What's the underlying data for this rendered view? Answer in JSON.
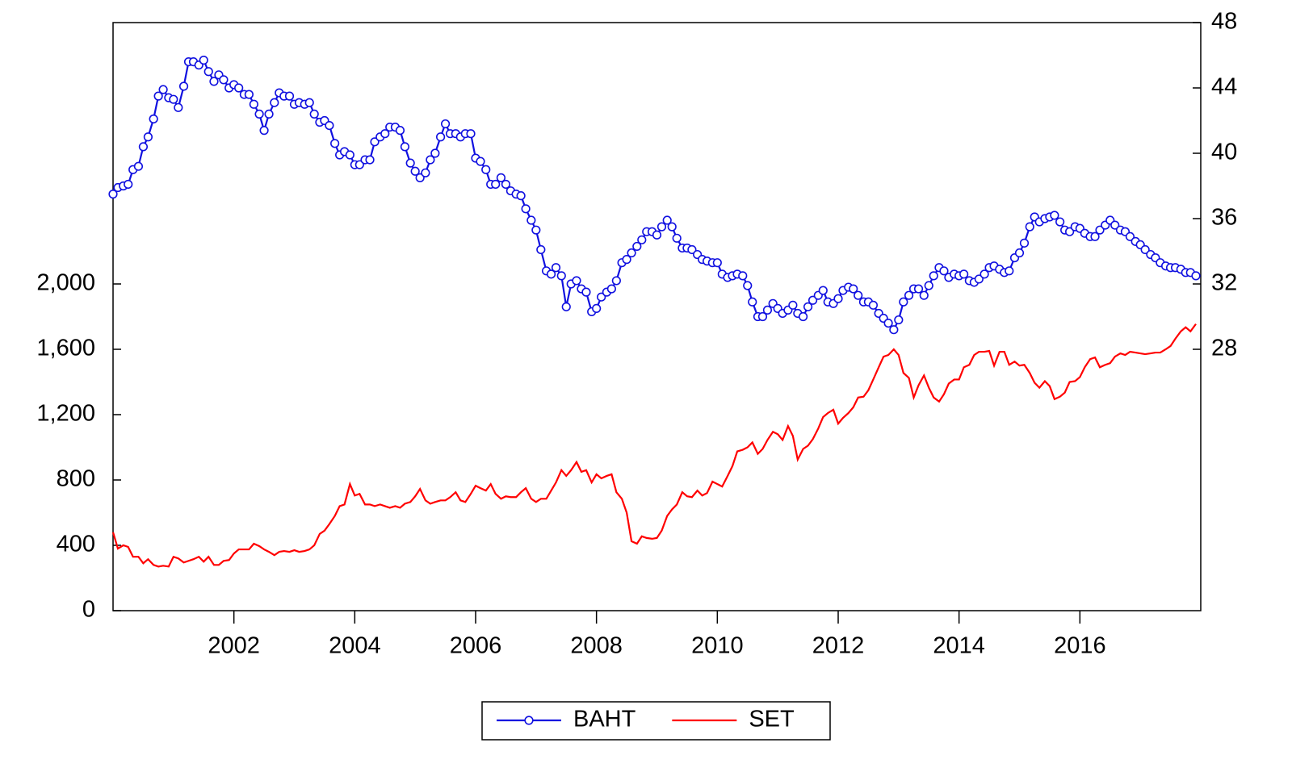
{
  "chart_data": {
    "type": "line",
    "x": [
      2000,
      2000.08,
      2000.17,
      2000.25,
      2000.33,
      2000.42,
      2000.5,
      2000.58,
      2000.67,
      2000.75,
      2000.83,
      2000.92,
      2001,
      2001.08,
      2001.17,
      2001.25,
      2001.33,
      2001.42,
      2001.5,
      2001.58,
      2001.67,
      2001.75,
      2001.83,
      2001.92,
      2002,
      2002.08,
      2002.17,
      2002.25,
      2002.33,
      2002.42,
      2002.5,
      2002.58,
      2002.67,
      2002.75,
      2002.83,
      2002.92,
      2003,
      2003.08,
      2003.17,
      2003.25,
      2003.33,
      2003.42,
      2003.5,
      2003.58,
      2003.67,
      2003.75,
      2003.83,
      2003.92,
      2004,
      2004.08,
      2004.17,
      2004.25,
      2004.33,
      2004.42,
      2004.5,
      2004.58,
      2004.67,
      2004.75,
      2004.83,
      2004.92,
      2005,
      2005.08,
      2005.17,
      2005.25,
      2005.33,
      2005.42,
      2005.5,
      2005.58,
      2005.67,
      2005.75,
      2005.83,
      2005.92,
      2006,
      2006.08,
      2006.17,
      2006.25,
      2006.33,
      2006.42,
      2006.5,
      2006.58,
      2006.67,
      2006.75,
      2006.83,
      2006.92,
      2007,
      2007.08,
      2007.17,
      2007.25,
      2007.33,
      2007.42,
      2007.5,
      2007.58,
      2007.67,
      2007.75,
      2007.83,
      2007.92,
      2008,
      2008.08,
      2008.17,
      2008.25,
      2008.33,
      2008.42,
      2008.5,
      2008.58,
      2008.67,
      2008.75,
      2008.83,
      2008.92,
      2009,
      2009.08,
      2009.17,
      2009.25,
      2009.33,
      2009.42,
      2009.5,
      2009.58,
      2009.67,
      2009.75,
      2009.83,
      2009.92,
      2010,
      2010.08,
      2010.17,
      2010.25,
      2010.33,
      2010.42,
      2010.5,
      2010.58,
      2010.67,
      2010.75,
      2010.83,
      2010.92,
      2011,
      2011.08,
      2011.17,
      2011.25,
      2011.33,
      2011.42,
      2011.5,
      2011.58,
      2011.67,
      2011.75,
      2011.83,
      2011.92,
      2012,
      2012.08,
      2012.17,
      2012.25,
      2012.33,
      2012.42,
      2012.5,
      2012.58,
      2012.67,
      2012.75,
      2012.83,
      2012.92,
      2013,
      2013.08,
      2013.17,
      2013.25,
      2013.33,
      2013.42,
      2013.5,
      2013.58,
      2013.67,
      2013.75,
      2013.83,
      2013.92,
      2014,
      2014.08,
      2014.17,
      2014.25,
      2014.33,
      2014.42,
      2014.5,
      2014.58,
      2014.67,
      2014.75,
      2014.83,
      2014.92,
      2015,
      2015.08,
      2015.17,
      2015.25,
      2015.33,
      2015.42,
      2015.5,
      2015.58,
      2015.67,
      2015.75,
      2015.83,
      2015.92,
      2016,
      2016.08,
      2016.17,
      2016.25,
      2016.33,
      2016.42,
      2016.5,
      2016.58,
      2016.67,
      2016.75,
      2016.83,
      2016.92,
      2017,
      2017.08,
      2017.17,
      2017.25,
      2017.33,
      2017.42,
      2017.5,
      2017.58,
      2017.67,
      2017.75,
      2017.83,
      2017.92
    ],
    "xlim": [
      2000,
      2018
    ],
    "xticks": [
      2002,
      2004,
      2006,
      2008,
      2010,
      2012,
      2014,
      2016
    ],
    "ylim": [
      0,
      3600
    ],
    "yticks": [
      0,
      400,
      800,
      {
        "value": 1200,
        "label": "1,200"
      },
      {
        "value": 1600,
        "label": "1,600"
      },
      {
        "value": 2000,
        "label": "2,000"
      }
    ],
    "y2lim": [
      12,
      48
    ],
    "y2ticks": [
      28,
      32,
      36,
      40,
      44,
      48
    ],
    "series": [
      {
        "name": "BAHT",
        "color": "#1010e0",
        "axis": "y2",
        "marker": "circle",
        "values": [
          37.5,
          37.9,
          38.0,
          38.1,
          39.0,
          39.2,
          40.4,
          41.0,
          42.1,
          43.5,
          43.9,
          43.4,
          43.3,
          42.8,
          44.1,
          45.6,
          45.6,
          45.4,
          45.7,
          45.0,
          44.4,
          44.8,
          44.5,
          44.0,
          44.2,
          44.0,
          43.6,
          43.6,
          43.0,
          42.4,
          41.4,
          42.4,
          43.1,
          43.7,
          43.5,
          43.5,
          43.0,
          43.1,
          43.0,
          43.1,
          42.4,
          41.9,
          42.0,
          41.7,
          40.6,
          39.9,
          40.1,
          39.9,
          39.3,
          39.3,
          39.6,
          39.6,
          40.7,
          41.0,
          41.2,
          41.6,
          41.6,
          41.4,
          40.4,
          39.4,
          38.9,
          38.5,
          38.8,
          39.6,
          40.0,
          41.0,
          41.8,
          41.2,
          41.2,
          41.0,
          41.2,
          41.2,
          39.7,
          39.5,
          39.0,
          38.1,
          38.1,
          38.5,
          38.1,
          37.7,
          37.5,
          37.4,
          36.6,
          35.9,
          35.3,
          34.1,
          32.8,
          32.6,
          33.0,
          32.5,
          30.6,
          32.0,
          32.2,
          31.7,
          31.5,
          30.3,
          30.5,
          31.2,
          31.5,
          31.7,
          32.2,
          33.3,
          33.5,
          33.9,
          34.3,
          34.7,
          35.2,
          35.2,
          35.0,
          35.5,
          35.9,
          35.5,
          34.8,
          34.2,
          34.2,
          34.1,
          33.8,
          33.5,
          33.4,
          33.3,
          33.3,
          32.6,
          32.4,
          32.5,
          32.6,
          32.5,
          31.9,
          30.9,
          30.0,
          30.0,
          30.4,
          30.8,
          30.5,
          30.2,
          30.4,
          30.7,
          30.2,
          30.0,
          30.6,
          31.0,
          31.3,
          31.6,
          30.9,
          30.8,
          31.1,
          31.6,
          31.8,
          31.7,
          31.3,
          30.9,
          30.9,
          30.7,
          30.2,
          29.9,
          29.6,
          29.2,
          29.8,
          30.9,
          31.3,
          31.7,
          31.7,
          31.3,
          31.9,
          32.5,
          33.0,
          32.8,
          32.4,
          32.6,
          32.5,
          32.6,
          32.2,
          32.1,
          32.3,
          32.6,
          33.0,
          33.1,
          32.9,
          32.7,
          32.8,
          33.6,
          33.9,
          34.5,
          35.5,
          36.1,
          35.8,
          36.0,
          36.1,
          36.2,
          35.8,
          35.3,
          35.2,
          35.5,
          35.4,
          35.1,
          34.9,
          34.9,
          35.3,
          35.6,
          35.9,
          35.6,
          35.3,
          35.2,
          34.9,
          34.6,
          34.4,
          34.1,
          33.8,
          33.6,
          33.3,
          33.1,
          33.0,
          33.0,
          32.9,
          32.7,
          32.7,
          32.5
        ]
      },
      {
        "name": "SET",
        "color": "#ff0000",
        "axis": "y",
        "values": [
          480,
          380,
          400,
          390,
          330,
          330,
          290,
          315,
          280,
          270,
          275,
          270,
          330,
          320,
          295,
          305,
          315,
          330,
          300,
          330,
          280,
          280,
          305,
          310,
          350,
          375,
          375,
          375,
          410,
          395,
          375,
          360,
          340,
          360,
          365,
          360,
          370,
          360,
          365,
          375,
          400,
          470,
          490,
          530,
          580,
          640,
          650,
          775,
          705,
          715,
          650,
          650,
          640,
          650,
          640,
          630,
          640,
          630,
          655,
          665,
          700,
          745,
          675,
          655,
          665,
          675,
          675,
          695,
          725,
          675,
          665,
          715,
          765,
          750,
          735,
          775,
          715,
          685,
          700,
          695,
          695,
          725,
          750,
          685,
          665,
          685,
          685,
          735,
          785,
          860,
          825,
          860,
          910,
          850,
          860,
          785,
          835,
          810,
          825,
          835,
          725,
          685,
          600,
          425,
          410,
          455,
          445,
          440,
          445,
          490,
          580,
          620,
          650,
          725,
          700,
          695,
          735,
          705,
          720,
          790,
          775,
          760,
          825,
          885,
          975,
          985,
          1000,
          1030,
          960,
          990,
          1045,
          1095,
          1080,
          1045,
          1130,
          1070,
          925,
          990,
          1010,
          1050,
          1115,
          1185,
          1210,
          1230,
          1145,
          1180,
          1210,
          1245,
          1305,
          1310,
          1350,
          1415,
          1490,
          1555,
          1565,
          1600,
          1565,
          1455,
          1425,
          1305,
          1380,
          1440,
          1365,
          1305,
          1280,
          1325,
          1390,
          1415,
          1415,
          1490,
          1505,
          1565,
          1585,
          1585,
          1590,
          1500,
          1585,
          1585,
          1505,
          1525,
          1500,
          1505,
          1455,
          1395,
          1365,
          1405,
          1375,
          1295,
          1310,
          1335,
          1400,
          1405,
          1430,
          1490,
          1540,
          1550,
          1490,
          1505,
          1515,
          1555,
          1575,
          1565,
          1585,
          1580,
          1575,
          1570,
          1575,
          1580,
          1580,
          1600,
          1620,
          1665,
          1710,
          1735,
          1710,
          1755
        ]
      }
    ]
  }
}
